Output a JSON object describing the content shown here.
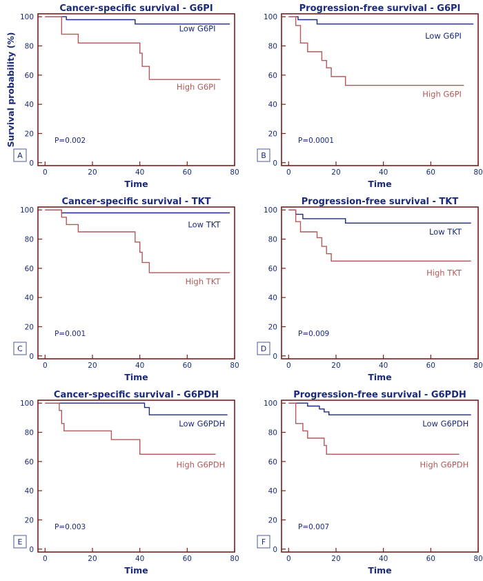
{
  "colors": {
    "frame": "#7b1c1c",
    "low": "#1b2a7a",
    "high": "#b25858",
    "text": "#1b2a7a"
  },
  "chart_data": [
    {
      "type": "line",
      "panel": "A",
      "title": "Cancer-specific survival - G6PI",
      "xlabel": "Time",
      "ylabel": "Survival probability (%)",
      "xlim": [
        -3,
        80
      ],
      "ylim": [
        -2,
        102
      ],
      "xticks": [
        "0",
        "20",
        "40",
        "60",
        "80"
      ],
      "yticks": [
        "0",
        "20",
        "40",
        "60",
        "80",
        "100"
      ],
      "pvalue": "P=0.002",
      "series": [
        {
          "name": "Low G6PI",
          "label_pos": [
            72,
            90
          ],
          "points": [
            [
              0,
              100
            ],
            [
              9,
              100
            ],
            [
              9,
              98
            ],
            [
              38,
              98
            ],
            [
              38,
              95
            ],
            [
              78,
              95
            ]
          ]
        },
        {
          "name": "High G6PI",
          "label_pos": [
            72,
            50
          ],
          "points": [
            [
              0,
              100
            ],
            [
              7,
              100
            ],
            [
              7,
              88
            ],
            [
              14,
              88
            ],
            [
              14,
              82
            ],
            [
              40,
              82
            ],
            [
              40,
              75
            ],
            [
              41,
              75
            ],
            [
              41,
              66
            ],
            [
              44,
              66
            ],
            [
              44,
              57
            ],
            [
              74,
              57
            ]
          ]
        }
      ]
    },
    {
      "type": "line",
      "panel": "B",
      "title": "Progression-free survival - G6PI",
      "xlabel": "Time",
      "ylabel": "",
      "xlim": [
        -3,
        80
      ],
      "ylim": [
        -2,
        102
      ],
      "xticks": [
        "0",
        "20",
        "40",
        "60",
        "80"
      ],
      "yticks": [
        "0",
        "20",
        "40",
        "60",
        "80",
        "100"
      ],
      "pvalue": "P=0.0001",
      "series": [
        {
          "name": "Low G6PI",
          "label_pos": [
            73,
            85
          ],
          "points": [
            [
              0,
              100
            ],
            [
              4,
              100
            ],
            [
              4,
              98
            ],
            [
              12,
              98
            ],
            [
              12,
              95
            ],
            [
              78,
              95
            ]
          ]
        },
        {
          "name": "High G6PI",
          "label_pos": [
            73,
            45
          ],
          "points": [
            [
              0,
              100
            ],
            [
              3,
              100
            ],
            [
              3,
              94
            ],
            [
              5,
              94
            ],
            [
              5,
              82
            ],
            [
              8,
              82
            ],
            [
              8,
              76
            ],
            [
              14,
              76
            ],
            [
              14,
              70
            ],
            [
              16,
              70
            ],
            [
              16,
              65
            ],
            [
              18,
              65
            ],
            [
              18,
              59
            ],
            [
              24,
              59
            ],
            [
              24,
              53
            ],
            [
              74,
              53
            ]
          ]
        }
      ]
    },
    {
      "type": "line",
      "panel": "C",
      "title": "Cancer-specific survival - TKT",
      "xlabel": "Time",
      "ylabel": "",
      "xlim": [
        -3,
        80
      ],
      "ylim": [
        -2,
        102
      ],
      "xticks": [
        "0",
        "20",
        "40",
        "60",
        "80"
      ],
      "yticks": [
        "0",
        "20",
        "40",
        "60",
        "80",
        "100"
      ],
      "pvalue": "P=0.001",
      "series": [
        {
          "name": "Low TKT",
          "label_pos": [
            74,
            88
          ],
          "points": [
            [
              0,
              100
            ],
            [
              7,
              100
            ],
            [
              7,
              98
            ],
            [
              78,
              98
            ]
          ]
        },
        {
          "name": "High TKT",
          "label_pos": [
            74,
            49
          ],
          "points": [
            [
              0,
              100
            ],
            [
              7,
              100
            ],
            [
              7,
              95
            ],
            [
              9,
              95
            ],
            [
              9,
              90
            ],
            [
              14,
              90
            ],
            [
              14,
              85
            ],
            [
              38,
              85
            ],
            [
              38,
              78
            ],
            [
              40,
              78
            ],
            [
              40,
              71
            ],
            [
              41,
              71
            ],
            [
              41,
              64
            ],
            [
              44,
              64
            ],
            [
              44,
              57
            ],
            [
              78,
              57
            ]
          ]
        }
      ]
    },
    {
      "type": "line",
      "panel": "D",
      "title": "Progression-free survival - TKT",
      "xlabel": "Time",
      "ylabel": "",
      "xlim": [
        -3,
        80
      ],
      "ylim": [
        -2,
        102
      ],
      "xticks": [
        "0",
        "20",
        "40",
        "60",
        "80"
      ],
      "yticks": [
        "0",
        "20",
        "40",
        "60",
        "80",
        "100"
      ],
      "pvalue": "P=0.009",
      "series": [
        {
          "name": "Low TKT",
          "label_pos": [
            73,
            83
          ],
          "points": [
            [
              0,
              100
            ],
            [
              3,
              100
            ],
            [
              3,
              97
            ],
            [
              6,
              97
            ],
            [
              6,
              94
            ],
            [
              24,
              94
            ],
            [
              24,
              91
            ],
            [
              77,
              91
            ]
          ]
        },
        {
          "name": "High TKT",
          "label_pos": [
            73,
            55
          ],
          "points": [
            [
              0,
              100
            ],
            [
              3,
              100
            ],
            [
              3,
              92
            ],
            [
              5,
              92
            ],
            [
              5,
              85
            ],
            [
              12,
              85
            ],
            [
              12,
              81
            ],
            [
              14,
              81
            ],
            [
              14,
              75
            ],
            [
              16,
              75
            ],
            [
              16,
              70
            ],
            [
              18,
              70
            ],
            [
              18,
              65
            ],
            [
              77,
              65
            ]
          ]
        }
      ]
    },
    {
      "type": "line",
      "panel": "E",
      "title": "Cancer-specific survival - G6PDH",
      "xlabel": "Time",
      "ylabel": "",
      "xlim": [
        -3,
        80
      ],
      "ylim": [
        -2,
        102
      ],
      "xticks": [
        "0",
        "20",
        "40",
        "60",
        "80"
      ],
      "yticks": [
        "0",
        "20",
        "40",
        "60",
        "80",
        "100"
      ],
      "pvalue": "P=0.003",
      "series": [
        {
          "name": "Low G6PDH",
          "label_pos": [
            76,
            84
          ],
          "points": [
            [
              0,
              100
            ],
            [
              42,
              100
            ],
            [
              42,
              97
            ],
            [
              44,
              97
            ],
            [
              44,
              92
            ],
            [
              77,
              92
            ]
          ]
        },
        {
          "name": "High G6PDH",
          "label_pos": [
            76,
            56
          ],
          "points": [
            [
              0,
              100
            ],
            [
              6,
              100
            ],
            [
              6,
              95
            ],
            [
              7,
              95
            ],
            [
              7,
              86
            ],
            [
              8,
              86
            ],
            [
              8,
              81
            ],
            [
              28,
              81
            ],
            [
              28,
              75
            ],
            [
              40,
              75
            ],
            [
              40,
              65
            ],
            [
              72,
              65
            ]
          ]
        }
      ]
    },
    {
      "type": "line",
      "panel": "F",
      "title": "Progression-free survival - G6PDH",
      "xlabel": "Time",
      "ylabel": "",
      "xlim": [
        -3,
        80
      ],
      "ylim": [
        -2,
        102
      ],
      "xticks": [
        "0",
        "20",
        "40",
        "60",
        "80"
      ],
      "yticks": [
        "0",
        "20",
        "40",
        "60",
        "80",
        "100"
      ],
      "pvalue": "P=0.007",
      "series": [
        {
          "name": "Low G6PDH",
          "label_pos": [
            76,
            84
          ],
          "points": [
            [
              0,
              100
            ],
            [
              8,
              100
            ],
            [
              8,
              98
            ],
            [
              13,
              98
            ],
            [
              13,
              96
            ],
            [
              15,
              96
            ],
            [
              15,
              94
            ],
            [
              17,
              94
            ],
            [
              17,
              92
            ],
            [
              77,
              92
            ]
          ]
        },
        {
          "name": "High G6PDH",
          "label_pos": [
            76,
            56
          ],
          "points": [
            [
              0,
              100
            ],
            [
              3,
              100
            ],
            [
              3,
              86
            ],
            [
              6,
              86
            ],
            [
              6,
              81
            ],
            [
              8,
              81
            ],
            [
              8,
              76
            ],
            [
              15,
              76
            ],
            [
              15,
              71
            ],
            [
              16,
              71
            ],
            [
              16,
              65
            ],
            [
              72,
              65
            ]
          ]
        }
      ]
    }
  ]
}
